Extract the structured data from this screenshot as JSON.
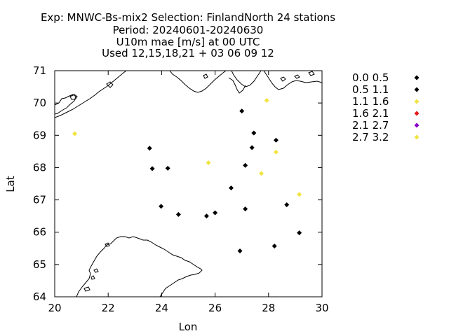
{
  "chart_data": {
    "type": "scatter",
    "title_lines": [
      "Exp: MNWC-Bs-mix2   Selection: FinlandNorth      24 stations",
      "Period: 20240601-20240630",
      "U10m mae [m/s] at  00 UTC",
      "Used 12,15,18,21 + 03 06 09 12"
    ],
    "xlabel": "Lon",
    "ylabel": "Lat",
    "xlim": [
      20,
      30
    ],
    "ylim": [
      64,
      71
    ],
    "xticks": [
      20,
      22,
      24,
      26,
      28,
      30
    ],
    "yticks": [
      64,
      65,
      66,
      67,
      68,
      69,
      70,
      71
    ],
    "grid": false,
    "legend_position": "right",
    "legend": [
      {
        "label": "0.0 0.5",
        "color": "#000000"
      },
      {
        "label": "0.5 1.1",
        "color": "#000000"
      },
      {
        "label": "1.1 1.6",
        "color": "#f0e442"
      },
      {
        "label": "1.6 2.1",
        "color": "#e41a1c"
      },
      {
        "label": "2.1 2.7",
        "color": "#8a00c8"
      },
      {
        "label": "2.7 3.2",
        "color": "#f0e442"
      }
    ],
    "points": [
      {
        "lon": 27.0,
        "lat": 69.75,
        "color": "#000000"
      },
      {
        "lon": 27.93,
        "lat": 70.08,
        "color": "#f0e442"
      },
      {
        "lon": 27.45,
        "lat": 69.07,
        "color": "#000000"
      },
      {
        "lon": 28.28,
        "lat": 68.85,
        "color": "#000000"
      },
      {
        "lon": 20.75,
        "lat": 69.05,
        "color": "#f0e442"
      },
      {
        "lon": 23.55,
        "lat": 68.6,
        "color": "#000000"
      },
      {
        "lon": 27.38,
        "lat": 68.62,
        "color": "#000000"
      },
      {
        "lon": 28.28,
        "lat": 68.48,
        "color": "#f0e442"
      },
      {
        "lon": 25.75,
        "lat": 68.15,
        "color": "#f0e442"
      },
      {
        "lon": 23.65,
        "lat": 67.97,
        "color": "#000000"
      },
      {
        "lon": 24.23,
        "lat": 67.98,
        "color": "#000000"
      },
      {
        "lon": 27.13,
        "lat": 68.07,
        "color": "#000000"
      },
      {
        "lon": 27.73,
        "lat": 67.82,
        "color": "#f0e442"
      },
      {
        "lon": 26.6,
        "lat": 67.37,
        "color": "#000000"
      },
      {
        "lon": 29.15,
        "lat": 67.17,
        "color": "#f0e442"
      },
      {
        "lon": 23.98,
        "lat": 66.8,
        "color": "#000000"
      },
      {
        "lon": 28.68,
        "lat": 66.85,
        "color": "#000000"
      },
      {
        "lon": 27.13,
        "lat": 66.72,
        "color": "#000000"
      },
      {
        "lon": 24.63,
        "lat": 66.55,
        "color": "#000000"
      },
      {
        "lon": 25.68,
        "lat": 66.5,
        "color": "#000000"
      },
      {
        "lon": 26.0,
        "lat": 66.6,
        "color": "#000000"
      },
      {
        "lon": 29.15,
        "lat": 65.98,
        "color": "#000000"
      },
      {
        "lon": 28.22,
        "lat": 65.57,
        "color": "#000000"
      },
      {
        "lon": 26.93,
        "lat": 65.42,
        "color": "#000000"
      }
    ]
  }
}
